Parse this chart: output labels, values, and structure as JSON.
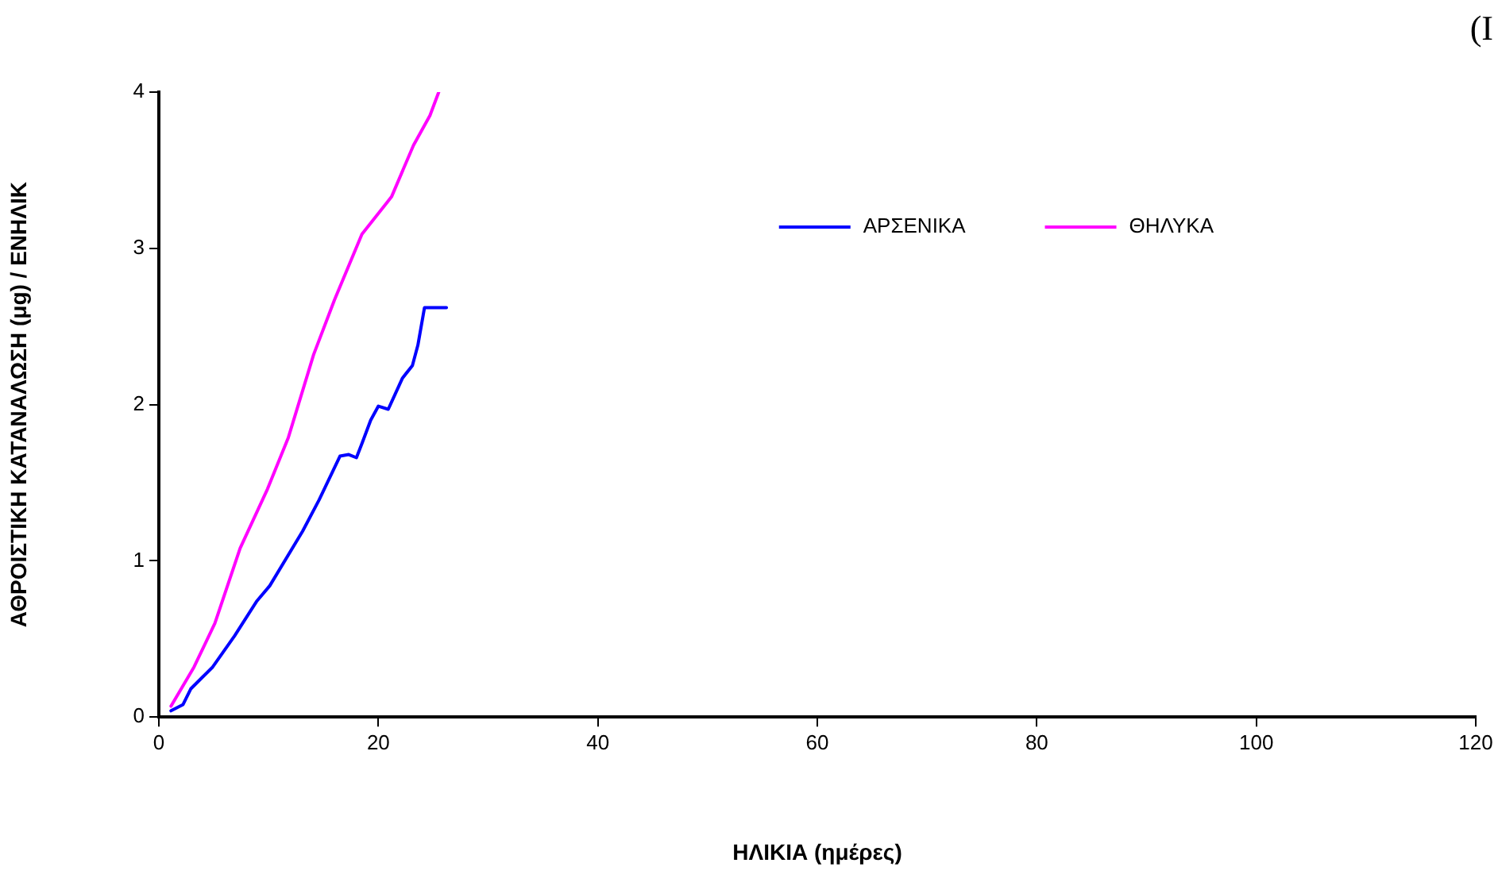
{
  "chart_data": {
    "type": "line",
    "xlabel": "ΗΛΙΚΙΑ (ημέρες)",
    "ylabel": "ΑΘΡΟΙΣΤΙΚΗ ΚΑΤΑΝΑΛΩΣΗ (μg) / ΕΝΗΛΙΚ",
    "annotations": [
      "(Ι"
    ],
    "xlim": [
      0,
      120
    ],
    "xticks": [
      0,
      20,
      40,
      60,
      80,
      100,
      120
    ],
    "ylim": [
      0,
      4
    ],
    "yticks": [
      0,
      1,
      2,
      3,
      4
    ],
    "grid": false,
    "legend": "top right",
    "marker": "none",
    "line_style": "solid",
    "series": [
      {
        "name": "ΑΡΣΕΝΙΚΑ",
        "color": "#0000ff",
        "x": [
          1.1,
          2.2,
          2.9,
          4.9,
          6.9,
          8.9,
          10.1,
          13.1,
          14.6,
          16.5,
          17.3,
          18.0,
          18.5,
          19.3,
          20.0,
          20.9,
          22.2,
          23.1,
          23.6,
          24.2,
          26.2
        ],
        "values": [
          0.04,
          0.08,
          0.18,
          0.32,
          0.52,
          0.74,
          0.84,
          1.19,
          1.39,
          1.67,
          1.68,
          1.66,
          1.75,
          1.9,
          1.99,
          1.97,
          2.17,
          2.25,
          2.38,
          2.62,
          2.62
        ]
      },
      {
        "name": "ΘΗΛΥΚΑ",
        "color": "#ff00ff",
        "x": [
          1.1,
          3.2,
          5.1,
          7.4,
          9.9,
          11.8,
          14.1,
          16.0,
          18.5,
          21.2,
          23.2,
          24.7,
          25.5
        ],
        "values": [
          0.07,
          0.32,
          0.6,
          1.08,
          1.46,
          1.79,
          2.32,
          2.67,
          3.09,
          3.33,
          3.66,
          3.85,
          4.0
        ]
      }
    ]
  }
}
